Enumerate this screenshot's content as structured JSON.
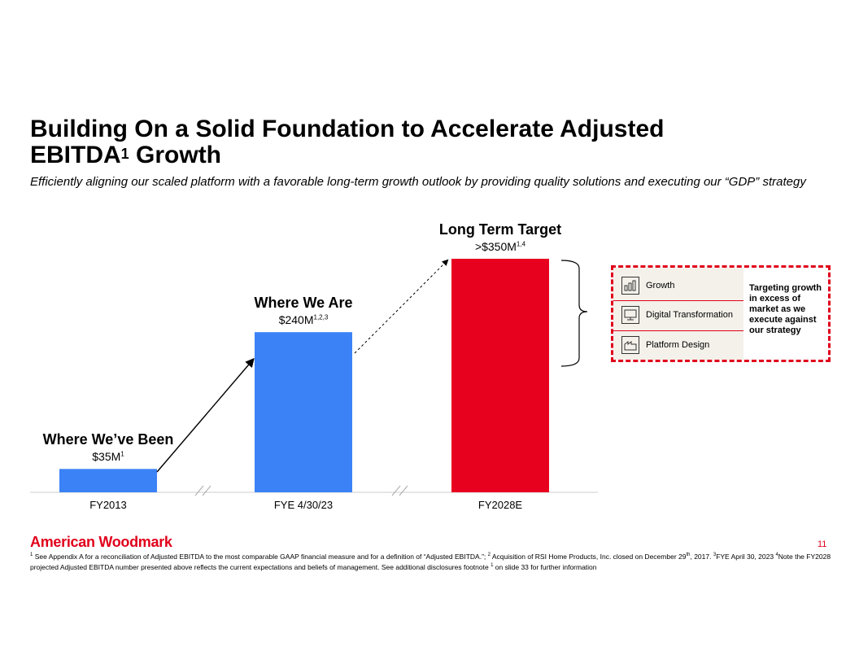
{
  "title_line1": "Building On a Solid Foundation to Accelerate Adjusted",
  "title_line2": "EBITDA",
  "title_sup": "1",
  "title_line2_rest": " Growth",
  "subtitle": "Efficiently aligning our scaled platform with a favorable long-term growth outlook by providing quality solutions and executing our “GDP” strategy",
  "chart_data": {
    "type": "bar",
    "categories": [
      "FY2013",
      "FYE 4/30/23",
      "FY2028E"
    ],
    "values": [
      35,
      240,
      350
    ],
    "unit": "$M",
    "colors": [
      "#3b82f6",
      "#3b82f6",
      "#e8001f"
    ],
    "headings": [
      "Where We’ve Been",
      "Where We Are",
      "Long Term Target"
    ],
    "value_labels": [
      "$35M",
      "$240M",
      ">$350M"
    ],
    "value_label_sups": [
      "1",
      "1,2,3",
      "1,4"
    ],
    "ylim": [
      0,
      350
    ],
    "axis_break_marks": true
  },
  "panel": {
    "pillars": [
      {
        "label": "Growth",
        "icon": "bar-chart-icon"
      },
      {
        "label": "Digital Transformation",
        "icon": "network-monitor-icon"
      },
      {
        "label": "Platform Design",
        "icon": "factory-icon"
      }
    ],
    "note": "Targeting growth in excess of market as we execute against our strategy",
    "border_color": "#e0001b"
  },
  "footer": {
    "logo": "American Woodmark",
    "page_number": "11",
    "footnote_part1": "See Appendix A for a reconciliation of Adjusted EBITDA to the most comparable GAAP financial measure and for a definition of “Adjusted EBITDA.”; ",
    "footnote_part2": "Acquisition of RSI Home Products, Inc. closed on December 29",
    "footnote_th": "th",
    "footnote_part3": ", 2017.  ",
    "footnote_part4": "FYE April 30, 2023 ",
    "footnote_part5": "Note the FY2028 projected Adjusted EBITDA number presented above reflects the current expectations and beliefs of management. See additional disclosures footnote ",
    "footnote_part6": " on slide 33 for further information"
  }
}
